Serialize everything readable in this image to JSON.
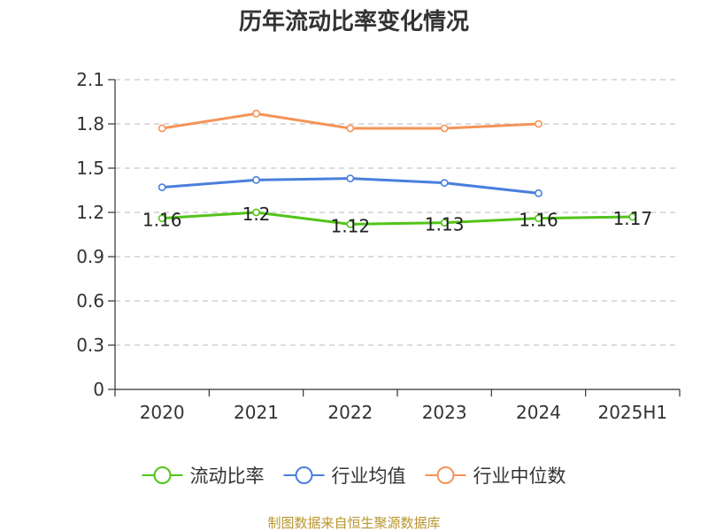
{
  "chart_data": {
    "type": "line",
    "title": "历年流动比率变化情况",
    "categories": [
      "2020",
      "2021",
      "2022",
      "2023",
      "2024",
      "2025H1"
    ],
    "ylim": [
      0,
      2.1
    ],
    "yticks": [
      "0",
      "0.3",
      "0.6",
      "0.9",
      "1.2",
      "1.5",
      "1.8",
      "2.1"
    ],
    "grid": true,
    "legend_position": "bottom",
    "series": [
      {
        "name": "流动比率",
        "color": "#52c41a",
        "values": [
          1.16,
          1.2,
          1.12,
          1.13,
          1.16,
          1.17
        ],
        "labels": [
          "1.16",
          "1.2",
          "1.12",
          "1.13",
          "1.16",
          "1.17"
        ]
      },
      {
        "name": "行业均值",
        "color": "#4a7fdc",
        "values": [
          1.37,
          1.42,
          1.43,
          1.4,
          1.33,
          null
        ]
      },
      {
        "name": "行业中位数",
        "color": "#f59359",
        "values": [
          1.77,
          1.87,
          1.77,
          1.77,
          1.8,
          null
        ]
      }
    ]
  },
  "source": "制图数据来自恒生聚源数据库"
}
